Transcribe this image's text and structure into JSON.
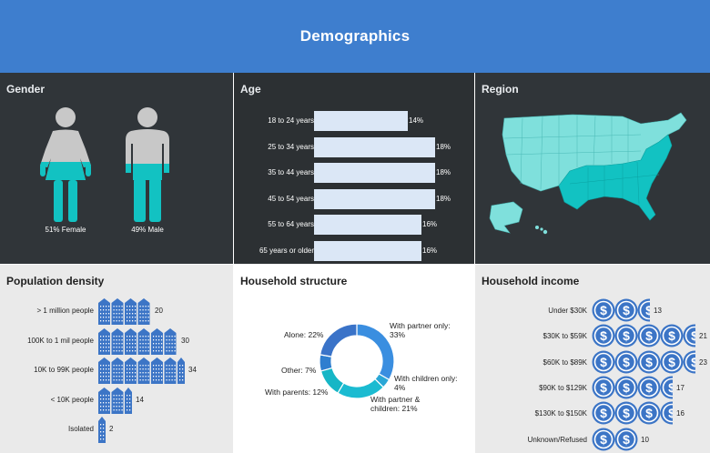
{
  "header": {
    "title": "Demographics"
  },
  "colors": {
    "header": "#3e7ece",
    "dark_panel": "#303539",
    "light_panel": "#eaeaea",
    "accent_teal": "#12c2c2",
    "figure_gray": "#c8c8c8",
    "icon_blue": "#3c75c6",
    "bar_fill": "#dbe7f6"
  },
  "gender": {
    "title": "Gender",
    "female": {
      "label": "51% Female",
      "value": 51,
      "icon": "female-figure-icon"
    },
    "male": {
      "label": "49% Male",
      "value": 49,
      "icon": "male-figure-icon"
    }
  },
  "age": {
    "title": "Age",
    "rows": [
      {
        "label": "18 to 24 years",
        "value": 14,
        "value_label": "14%"
      },
      {
        "label": "25 to 34 years",
        "value": 18,
        "value_label": "18%"
      },
      {
        "label": "35 to 44 years",
        "value": 18,
        "value_label": "18%"
      },
      {
        "label": "45 to 54 years",
        "value": 18,
        "value_label": "18%"
      },
      {
        "label": "55 to 64 years",
        "value": 16,
        "value_label": "16%"
      },
      {
        "label": "65 years or older",
        "value": 16,
        "value_label": "16%"
      }
    ]
  },
  "region": {
    "title": "Region",
    "icon": "us-map-icon"
  },
  "density": {
    "title": "Population density",
    "icon": "building-icon",
    "rows": [
      {
        "label": "> 1 million people",
        "value": 20,
        "value_label": "20"
      },
      {
        "label": "100K to 1 mil people",
        "value": 30,
        "value_label": "30"
      },
      {
        "label": "10K to 99K people",
        "value": 34,
        "value_label": "34"
      },
      {
        "label": "< 10K people",
        "value": 14,
        "value_label": "14"
      },
      {
        "label": "Isolated",
        "value": 2,
        "value_label": "2"
      }
    ]
  },
  "household": {
    "title": "Household structure",
    "segments": [
      {
        "label_1": "With partner only:",
        "label_2": "33%",
        "value": 33,
        "color": "#3a8ee0"
      },
      {
        "label_1": "With children only:",
        "label_2": "4%",
        "value": 4,
        "color": "#2aa7d6"
      },
      {
        "label_1": "With partner &",
        "label_2": "children: 21%",
        "value": 21,
        "color": "#1bbbd1"
      },
      {
        "label_1": "With parents: 12%",
        "label_2": "",
        "value": 12,
        "color": "#16b6c6"
      },
      {
        "label_1": "Other: 7%",
        "label_2": "",
        "value": 7,
        "color": "#2f7ecf"
      },
      {
        "label_1": "Alone: 22%",
        "label_2": "",
        "value": 22,
        "color": "#3a73c8"
      }
    ]
  },
  "income": {
    "title": "Household income",
    "icon": "dollar-coin-icon",
    "rows": [
      {
        "label": "Under $30K",
        "value": 13,
        "value_label": "13"
      },
      {
        "label": "$30K to $59K",
        "value": 21,
        "value_label": "21"
      },
      {
        "label": "$60K to $89K",
        "value": 23,
        "value_label": "23"
      },
      {
        "label": "$90K to $129K",
        "value": 17,
        "value_label": "17"
      },
      {
        "label": "$130K to $150K",
        "value": 16,
        "value_label": "16"
      },
      {
        "label": "Unknown/Refused",
        "value": 10,
        "value_label": "10"
      }
    ]
  }
}
